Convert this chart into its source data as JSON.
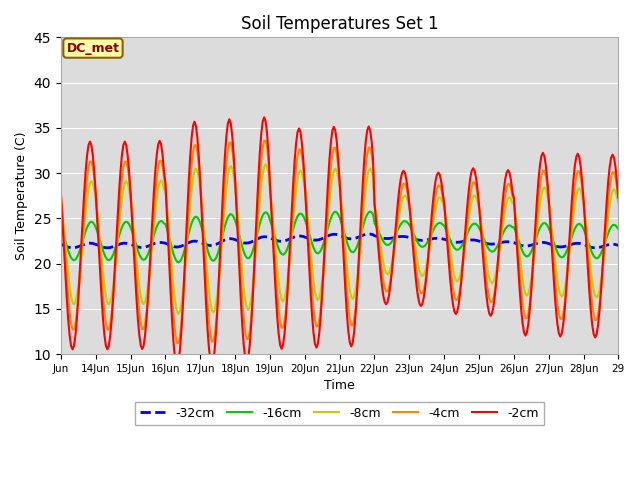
{
  "title": "Soil Temperatures Set 1",
  "xlabel": "Time",
  "ylabel": "Soil Temperature (C)",
  "ylim": [
    10,
    45
  ],
  "yticks": [
    10,
    15,
    20,
    25,
    30,
    35,
    40,
    45
  ],
  "plot_bg_color": "#dcdcdc",
  "fig_bg_color": "#ffffff",
  "annotation_text": "DC_met",
  "annotation_color": "#8B0000",
  "annotation_bg": "#ffffaa",
  "annotation_border": "#8B6000",
  "series_labels": [
    "-32cm",
    "-16cm",
    "-8cm",
    "-4cm",
    "-2cm"
  ],
  "series_colors": [
    "#0000ee",
    "#00cc00",
    "#cccc00",
    "#ff8800",
    "#ff0000"
  ],
  "series_linewidths": [
    2.0,
    1.5,
    1.5,
    1.5,
    1.5
  ],
  "series_linestyles": [
    "--",
    "-",
    "-",
    "-",
    "-"
  ],
  "x_tick_labels": [
    "Jun",
    "14Jun",
    "15Jun",
    "16Jun",
    "17Jun",
    "18Jun",
    "19Jun",
    "20Jun",
    "21Jun",
    "22Jun",
    "23Jun",
    "24Jun",
    "25Jun",
    "26Jun",
    "27Jun",
    "28Jun",
    "29"
  ],
  "x_tick_positions": [
    0,
    24,
    48,
    72,
    96,
    120,
    144,
    168,
    192,
    216,
    240,
    264,
    288,
    312,
    336,
    360,
    384
  ],
  "n_points": 385,
  "hours_per_day": 24,
  "base_temp_32cm_start": 22.0,
  "base_temp_32cm_end": 22.0,
  "mean_daily_32cm": [
    22.0,
    22.0,
    22.0,
    22.1,
    22.2,
    22.5,
    22.7,
    22.8,
    23.0,
    23.0,
    22.8,
    22.6,
    22.4,
    22.2,
    22.1,
    22.0,
    21.9
  ],
  "legend_loc": "lower center",
  "legend_ncol": 5,
  "fig_width": 6.4,
  "fig_height": 4.8,
  "dpi": 100
}
